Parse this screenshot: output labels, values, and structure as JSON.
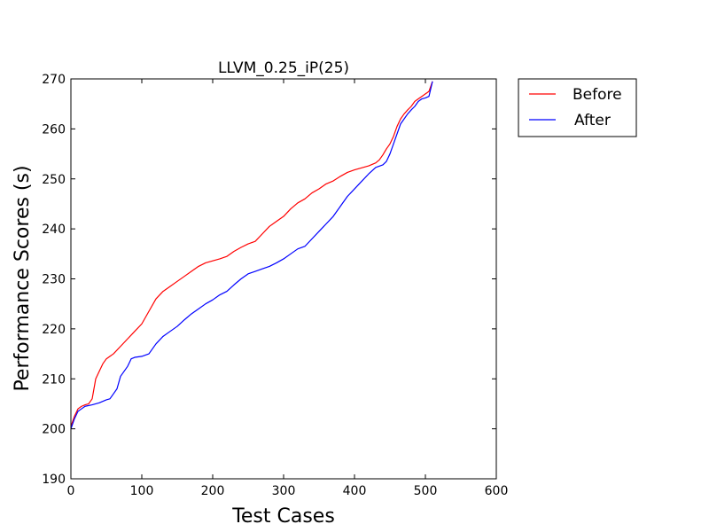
{
  "chart_data": {
    "type": "line",
    "title": "LLVM_0.25_iP(25)",
    "xlabel": "Test Cases",
    "ylabel": "Performance Scores (s)",
    "xlim": [
      0,
      600
    ],
    "ylim": [
      190,
      270
    ],
    "xticks": [
      "0",
      "100",
      "200",
      "300",
      "400",
      "500",
      "600"
    ],
    "yticks": [
      "190",
      "200",
      "210",
      "220",
      "230",
      "240",
      "250",
      "260",
      "270"
    ],
    "grid": false,
    "legend_position": "outside-top-right",
    "series": [
      {
        "name": "Before",
        "color": "#ff0000",
        "x": [
          0,
          5,
          10,
          15,
          20,
          25,
          30,
          35,
          40,
          45,
          50,
          55,
          60,
          70,
          80,
          90,
          100,
          110,
          120,
          130,
          140,
          150,
          160,
          170,
          180,
          190,
          200,
          210,
          220,
          230,
          240,
          250,
          260,
          270,
          280,
          290,
          300,
          310,
          320,
          330,
          340,
          350,
          360,
          370,
          380,
          390,
          400,
          410,
          420,
          430,
          435,
          440,
          445,
          450,
          455,
          460,
          465,
          470,
          475,
          480,
          485,
          490,
          495,
          500,
          505,
          510
        ],
        "y": [
          200.5,
          202.5,
          204.0,
          204.5,
          204.8,
          205.0,
          206.0,
          210.0,
          211.5,
          213.0,
          214.0,
          214.5,
          215.0,
          216.5,
          218.0,
          219.5,
          221.0,
          223.5,
          226.0,
          227.5,
          228.5,
          229.5,
          230.5,
          231.5,
          232.5,
          233.2,
          233.6,
          234.0,
          234.5,
          235.5,
          236.3,
          237.0,
          237.5,
          239.0,
          240.5,
          241.5,
          242.5,
          244.0,
          245.2,
          246.0,
          247.2,
          248.0,
          249.0,
          249.6,
          250.5,
          251.3,
          251.8,
          252.2,
          252.6,
          253.2,
          253.8,
          254.8,
          256.0,
          257.0,
          258.5,
          260.5,
          262.0,
          263.0,
          263.8,
          264.5,
          265.5,
          266.0,
          266.5,
          267.0,
          267.5,
          269.5
        ]
      },
      {
        "name": "After",
        "color": "#0000ff",
        "x": [
          0,
          5,
          10,
          15,
          20,
          30,
          40,
          50,
          55,
          60,
          65,
          70,
          75,
          80,
          85,
          90,
          100,
          110,
          120,
          130,
          140,
          150,
          160,
          170,
          180,
          190,
          200,
          210,
          220,
          230,
          240,
          250,
          260,
          270,
          280,
          290,
          300,
          310,
          320,
          330,
          340,
          350,
          360,
          370,
          380,
          390,
          400,
          410,
          420,
          430,
          440,
          445,
          450,
          455,
          460,
          465,
          470,
          475,
          480,
          485,
          490,
          495,
          500,
          505,
          510
        ],
        "y": [
          200.0,
          202.0,
          203.5,
          204.0,
          204.5,
          204.8,
          205.2,
          205.8,
          206.0,
          207.0,
          208.0,
          210.5,
          211.5,
          212.5,
          214.0,
          214.3,
          214.5,
          215.0,
          217.0,
          218.5,
          219.5,
          220.5,
          221.8,
          223.0,
          224.0,
          225.0,
          225.8,
          226.8,
          227.5,
          228.8,
          230.0,
          231.0,
          231.5,
          232.0,
          232.5,
          233.2,
          234.0,
          235.0,
          236.0,
          236.5,
          238.0,
          239.5,
          241.0,
          242.5,
          244.5,
          246.5,
          248.0,
          249.5,
          251.0,
          252.3,
          252.8,
          253.5,
          255.0,
          257.0,
          259.0,
          261.0,
          262.0,
          263.0,
          263.8,
          264.5,
          265.5,
          266.0,
          266.2,
          266.5,
          269.5
        ]
      }
    ]
  }
}
